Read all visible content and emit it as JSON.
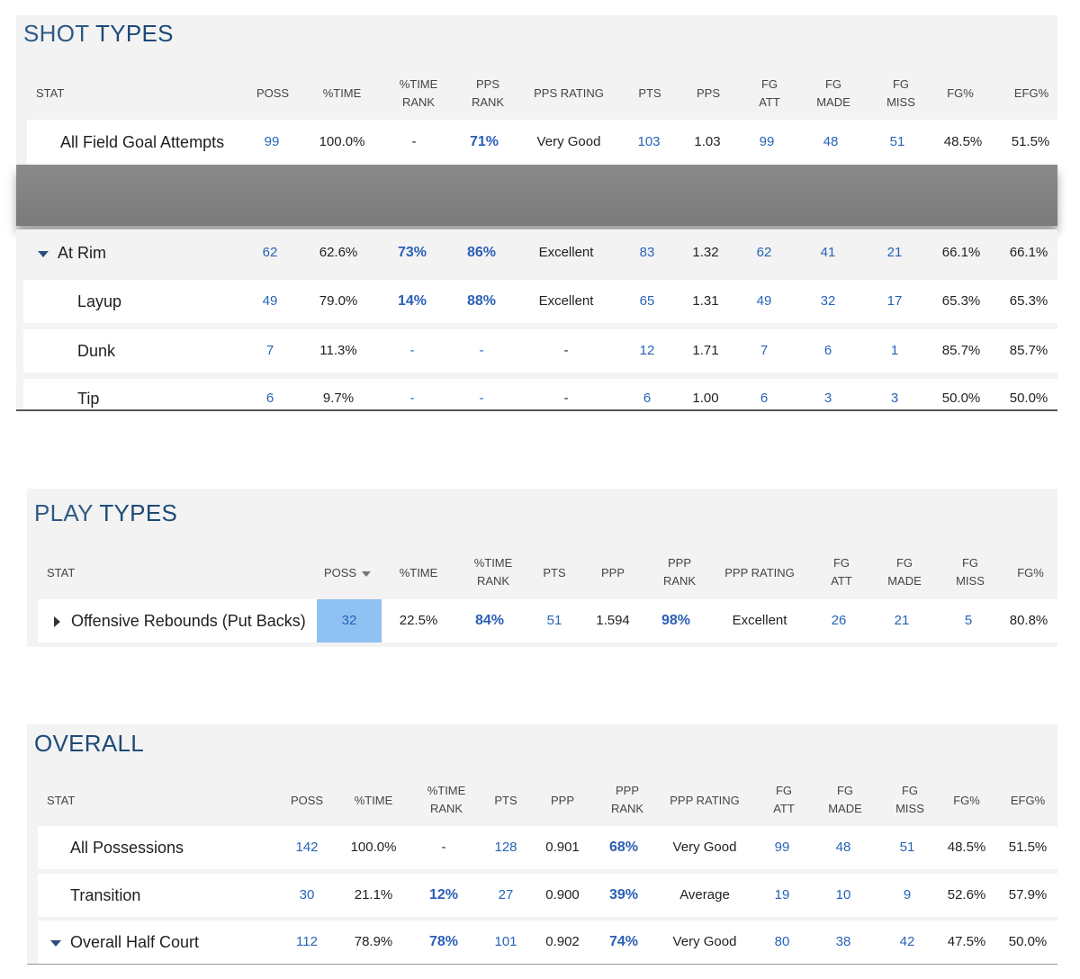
{
  "shot_types": {
    "title_a": "SHOT",
    "title_b": "TYPES",
    "headers": {
      "stat": "STAT",
      "poss": "POSS",
      "time": "%TIME",
      "time_rank_1": "%TIME",
      "time_rank_2": "RANK",
      "pps_rank_1": "PPS",
      "pps_rank_2": "RANK",
      "pps_rating": "PPS RATING",
      "pts": "PTS",
      "pps": "PPS",
      "fg_att_1": "FG",
      "fg_att_2": "ATT",
      "fg_made_1": "FG",
      "fg_made_2": "MADE",
      "fg_miss_1": "FG",
      "fg_miss_2": "MISS",
      "fg_pct": "FG%",
      "efg_pct": "EFG%"
    },
    "rows": [
      {
        "label": "All Field Goal Attempts",
        "poss": "99",
        "time": "100.0%",
        "time_rank": "-",
        "pps_rank": "71%",
        "rating": "Very Good",
        "pts": "103",
        "pps": "1.03",
        "att": "99",
        "made": "48",
        "miss": "51",
        "fg": "48.5%",
        "efg": "51.5%"
      },
      {
        "label": "At Rim",
        "poss": "62",
        "time": "62.6%",
        "time_rank": "73%",
        "pps_rank": "86%",
        "rating": "Excellent",
        "pts": "83",
        "pps": "1.32",
        "att": "62",
        "made": "41",
        "miss": "21",
        "fg": "66.1%",
        "efg": "66.1%"
      },
      {
        "label": "Layup",
        "poss": "49",
        "time": "79.0%",
        "time_rank": "14%",
        "pps_rank": "88%",
        "rating": "Excellent",
        "pts": "65",
        "pps": "1.31",
        "att": "49",
        "made": "32",
        "miss": "17",
        "fg": "65.3%",
        "efg": "65.3%"
      },
      {
        "label": "Dunk",
        "poss": "7",
        "time": "11.3%",
        "time_rank": "-",
        "pps_rank": "-",
        "rating": "-",
        "pts": "12",
        "pps": "1.71",
        "att": "7",
        "made": "6",
        "miss": "1",
        "fg": "85.7%",
        "efg": "85.7%"
      },
      {
        "label": "Tip",
        "poss": "6",
        "time": "9.7%",
        "time_rank": "-",
        "pps_rank": "-",
        "rating": "-",
        "pts": "6",
        "pps": "1.00",
        "att": "6",
        "made": "3",
        "miss": "3",
        "fg": "50.0%",
        "efg": "50.0%"
      }
    ]
  },
  "play_types": {
    "title_a": "PLAY",
    "title_b": "TYPES",
    "headers": {
      "stat": "STAT",
      "poss": "POSS",
      "time": "%TIME",
      "time_rank_1": "%TIME",
      "time_rank_2": "RANK",
      "pts": "PTS",
      "ppp": "PPP",
      "ppp_rank_1": "PPP",
      "ppp_rank_2": "RANK",
      "ppp_rating": "PPP RATING",
      "fg_att_1": "FG",
      "fg_att_2": "ATT",
      "fg_made_1": "FG",
      "fg_made_2": "MADE",
      "fg_miss_1": "FG",
      "fg_miss_2": "MISS",
      "fg_pct": "FG%"
    },
    "rows": [
      {
        "label": "Offensive Rebounds (Put Backs)",
        "poss": "32",
        "time": "22.5%",
        "time_rank": "84%",
        "pts": "51",
        "ppp": "1.594",
        "ppp_rank": "98%",
        "rating": "Excellent",
        "att": "26",
        "made": "21",
        "miss": "5",
        "fg": "80.8%"
      }
    ],
    "highlight_color": "#8fc1f3"
  },
  "overall": {
    "title": "OVERALL",
    "headers": {
      "stat": "STAT",
      "poss": "POSS",
      "time": "%TIME",
      "time_rank_1": "%TIME",
      "time_rank_2": "RANK",
      "pts": "PTS",
      "ppp": "PPP",
      "ppp_rank_1": "PPP",
      "ppp_rank_2": "RANK",
      "ppp_rating": "PPP RATING",
      "fg_att_1": "FG",
      "fg_att_2": "ATT",
      "fg_made_1": "FG",
      "fg_made_2": "MADE",
      "fg_miss_1": "FG",
      "fg_miss_2": "MISS",
      "fg_pct": "FG%",
      "efg_pct": "EFG%"
    },
    "rows": [
      {
        "label": "All Possessions",
        "poss": "142",
        "time": "100.0%",
        "time_rank": "-",
        "pts": "128",
        "ppp": "0.901",
        "ppp_rank": "68%",
        "rating": "Very Good",
        "att": "99",
        "made": "48",
        "miss": "51",
        "fg": "48.5%",
        "efg": "51.5%"
      },
      {
        "label": "Transition",
        "poss": "30",
        "time": "21.1%",
        "time_rank": "12%",
        "pts": "27",
        "ppp": "0.900",
        "ppp_rank": "39%",
        "rating": "Average",
        "att": "19",
        "made": "10",
        "miss": "9",
        "fg": "52.6%",
        "efg": "57.9%"
      },
      {
        "label": "Overall Half Court",
        "poss": "112",
        "time": "78.9%",
        "time_rank": "78%",
        "pts": "101",
        "ppp": "0.902",
        "ppp_rank": "74%",
        "rating": "Very Good",
        "att": "80",
        "made": "38",
        "miss": "42",
        "fg": "47.5%",
        "efg": "50.0%"
      }
    ]
  },
  "colors": {
    "accent": "#2764b8",
    "title": "#2d5a86",
    "panel": "#f3f3f3"
  }
}
